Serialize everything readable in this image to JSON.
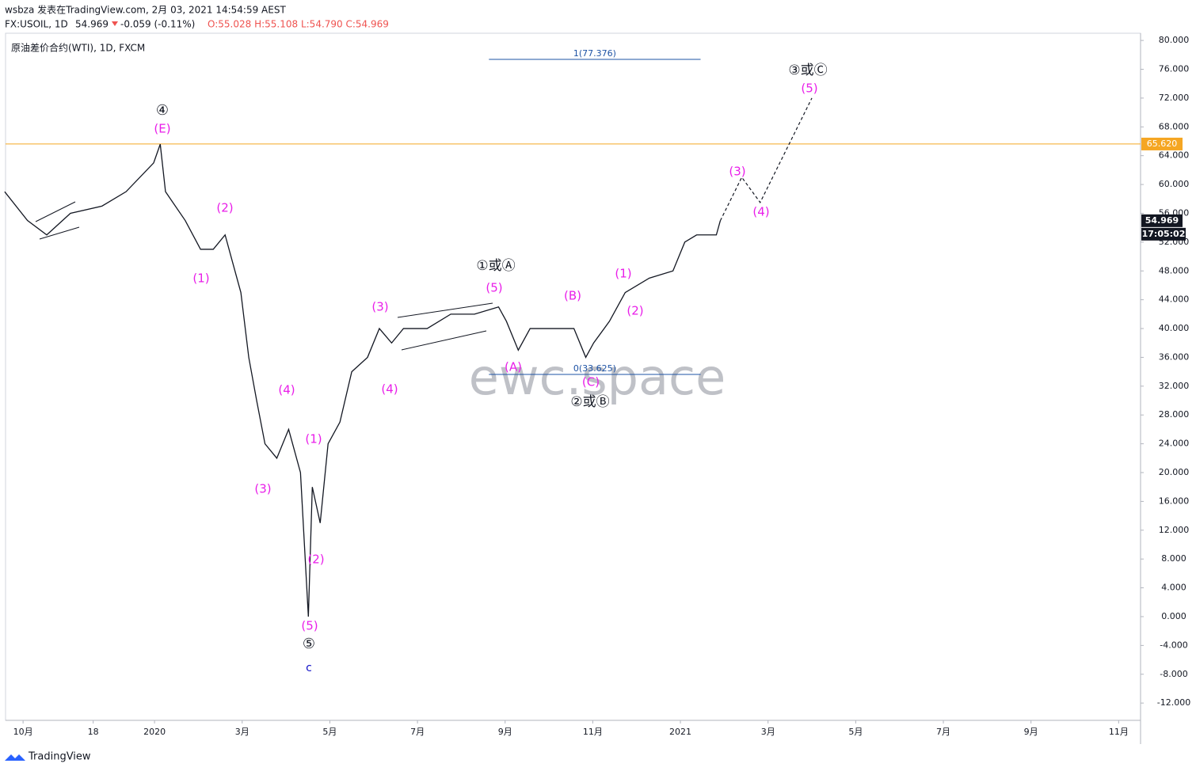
{
  "header": {
    "author_line": "wsbza 发表在TradingView.com, 2月 03, 2021 14:54:59 AEST",
    "symbol": "FX:USOIL, 1D",
    "last": "54.969",
    "change": "-0.059 (-0.11%)",
    "ohlc": "O:55.028 H:55.108 L:54.790 C:54.969",
    "logo": "TradingView"
  },
  "chart_data": {
    "type": "line",
    "title": "原油差价合约(WTI), 1D, FXCM",
    "watermark": "ewc.space",
    "series": [
      {
        "name": "USOIL",
        "color": "#131722",
        "dash": false,
        "x": [
          -0.42,
          0.1,
          0.54,
          1.08,
          1.8,
          2.35,
          2.98,
          3.13,
          3.25,
          3.7,
          4.05,
          4.34,
          4.61,
          4.79,
          4.97,
          5.15,
          5.33,
          5.52,
          5.79,
          6.06,
          6.33,
          6.51,
          6.6,
          6.78,
          6.96,
          7.23,
          7.5,
          7.86,
          8.13,
          8.41,
          8.68,
          9.22,
          9.76,
          10.3,
          10.85,
          11.03,
          11.3,
          11.57,
          12.12,
          12.57,
          12.84,
          13.02,
          13.38,
          13.74,
          14.29,
          14.83,
          15.1,
          15.37,
          15.82,
          15.91
        ],
        "values": [
          59,
          55,
          53,
          56,
          57,
          59,
          63,
          65.6,
          59,
          55,
          51,
          51,
          53,
          49,
          45,
          36,
          30,
          24,
          22,
          26,
          20,
          0,
          18,
          13,
          24,
          27,
          34,
          36,
          40,
          38,
          40,
          40,
          42,
          42,
          43,
          41,
          37,
          40,
          40,
          40,
          36,
          38,
          41,
          45,
          47,
          48,
          52,
          53,
          53,
          54.969
        ]
      },
      {
        "name": "projection",
        "color": "#131722",
        "dash": true,
        "x": [
          15.91,
          16.4,
          16.82,
          18.0
        ],
        "values": [
          54.969,
          61,
          57.5,
          72
        ]
      }
    ],
    "xlim": [
      -0.4,
      25.5
    ],
    "xticks": [
      {
        "value": 0,
        "label": "10月"
      },
      {
        "value": 1.6,
        "label": "18"
      },
      {
        "value": 3,
        "label": "2020"
      },
      {
        "value": 5,
        "label": "3月"
      },
      {
        "value": 7,
        "label": "5月"
      },
      {
        "value": 9,
        "label": "7月"
      },
      {
        "value": 11,
        "label": "9月"
      },
      {
        "value": 13,
        "label": "11月"
      },
      {
        "value": 15,
        "label": "2021"
      },
      {
        "value": 17,
        "label": "3月"
      },
      {
        "value": 19,
        "label": "5月"
      },
      {
        "value": 21,
        "label": "7月"
      },
      {
        "value": 23,
        "label": "9月"
      },
      {
        "value": 25,
        "label": "11月"
      }
    ],
    "ylim": [
      -14.4,
      81
    ],
    "yticks": [
      {
        "value": -12,
        "label": "-12.000"
      },
      {
        "value": -8,
        "label": "-8.000"
      },
      {
        "value": -4,
        "label": "-4.000"
      },
      {
        "value": 0,
        "label": "0.000"
      },
      {
        "value": 4,
        "label": "4.000"
      },
      {
        "value": 8,
        "label": "8.000"
      },
      {
        "value": 12,
        "label": "12.000"
      },
      {
        "value": 16,
        "label": "16.000"
      },
      {
        "value": 20,
        "label": "20.000"
      },
      {
        "value": 24,
        "label": "24.000"
      },
      {
        "value": 28,
        "label": "28.000"
      },
      {
        "value": 32,
        "label": "32.000"
      },
      {
        "value": 36,
        "label": "36.000"
      },
      {
        "value": 40,
        "label": "40.000"
      },
      {
        "value": 44,
        "label": "44.000"
      },
      {
        "value": 48,
        "label": "48.000"
      },
      {
        "value": 52,
        "label": "52.000"
      },
      {
        "value": 56,
        "label": "56.000"
      },
      {
        "value": 60,
        "label": "60.000"
      },
      {
        "value": 64,
        "label": "64.000"
      },
      {
        "value": 68,
        "label": "68.000"
      },
      {
        "value": 72,
        "label": "72.000"
      },
      {
        "value": 76,
        "label": "76.000"
      },
      {
        "value": 80,
        "label": "80.000"
      }
    ],
    "grid": false,
    "level": {
      "value": 65.62,
      "label": "65.620",
      "color": "#f5a623"
    },
    "last_price": 54.969,
    "countdown": "17:05:02",
    "fib_levels": [
      {
        "value": 77.376,
        "label": "1(77.376)",
        "x": [
          10.63,
          15.46
        ]
      },
      {
        "value": 33.625,
        "label": "0(33.625)",
        "x": [
          10.63,
          15.46
        ]
      }
    ],
    "annotations": [
      "④",
      "(E)",
      "(2)",
      "(1)",
      "(4)",
      "(3)",
      "(1)",
      "(2)",
      "(5)",
      "⑤",
      "c",
      "(3)",
      "(4)",
      "①或Ⓐ",
      "(5)",
      "(A)",
      "(B)",
      "(C)",
      "②或Ⓑ",
      "(1)",
      "(2)",
      "(3)",
      "(4)",
      "(5)",
      "③或Ⓒ"
    ]
  }
}
